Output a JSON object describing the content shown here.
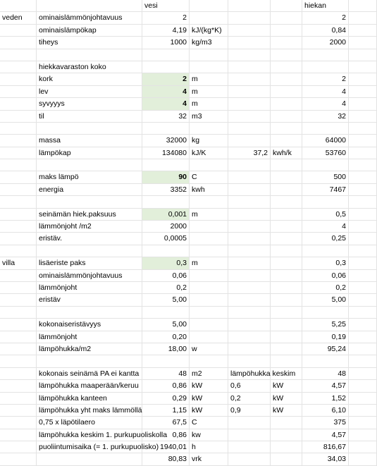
{
  "sheet": {
    "rows": [
      [
        "",
        "",
        "vesi",
        "",
        "",
        "",
        "hiekan",
        ""
      ],
      [
        "veden",
        "ominaislämmönjohtavuus",
        "2",
        "",
        "",
        "",
        "2",
        ""
      ],
      [
        "",
        "ominaislämpökap",
        "4,19",
        "kJ/(kg*K)",
        "",
        "",
        "0,84",
        ""
      ],
      [
        "",
        "tiheys",
        "1000",
        "kg/m3",
        "",
        "",
        "2000",
        ""
      ],
      [
        "",
        "",
        "",
        "",
        "",
        "",
        "",
        ""
      ],
      [
        "",
        "hiekkavaraston koko",
        "",
        "",
        "",
        "",
        "",
        ""
      ],
      [
        "",
        "kork",
        "2",
        "m",
        "",
        "",
        "2",
        ""
      ],
      [
        "",
        "lev",
        "4",
        "m",
        "",
        "",
        "4",
        ""
      ],
      [
        "",
        "syvyyys",
        "4",
        "m",
        "",
        "",
        "4",
        ""
      ],
      [
        "",
        "til",
        "32",
        "m3",
        "",
        "",
        "32",
        ""
      ],
      [
        "",
        "",
        "",
        "",
        "",
        "",
        "",
        ""
      ],
      [
        "",
        "massa",
        "32000",
        "kg",
        "",
        "",
        "64000",
        ""
      ],
      [
        "",
        "lämpökap",
        "134080",
        "kJ/K",
        "37,2",
        "kwh/k",
        "53760",
        ""
      ],
      [
        "",
        "",
        "",
        "",
        "",
        "",
        "",
        ""
      ],
      [
        "",
        "maks lämpö",
        "90",
        "C",
        "",
        "",
        "500",
        ""
      ],
      [
        "",
        "energia",
        "3352",
        "kwh",
        "",
        "",
        "7467",
        ""
      ],
      [
        "",
        "",
        "",
        "",
        "",
        "",
        "",
        ""
      ],
      [
        "",
        "seinämän hiek.paksuus",
        "0,001",
        "m",
        "",
        "",
        "0,5",
        ""
      ],
      [
        "",
        "lämmönjoht /m2",
        "2000",
        "",
        "",
        "",
        "4",
        ""
      ],
      [
        "",
        "eristäv.",
        "0,0005",
        "",
        "",
        "",
        "0,25",
        ""
      ],
      [
        "",
        "",
        "",
        "",
        "",
        "",
        "",
        ""
      ],
      [
        "villa",
        "lisäeriste paks",
        "0,3",
        "m",
        "",
        "",
        "0,3",
        ""
      ],
      [
        "",
        "ominaislämmönjohtavuus",
        "0,06",
        "",
        "",
        "",
        "0,06",
        ""
      ],
      [
        "",
        "lämmönjoht",
        "0,2",
        "",
        "",
        "",
        "0,2",
        ""
      ],
      [
        "",
        "eristäv",
        "5,00",
        "",
        "",
        "",
        "5,00",
        ""
      ],
      [
        "",
        "",
        "",
        "",
        "",
        "",
        "",
        ""
      ],
      [
        "",
        "kokonaiseristävyys",
        "5,00",
        "",
        "",
        "",
        "5,25",
        ""
      ],
      [
        "",
        "lämmönjoht",
        "0,20",
        "",
        "",
        "",
        "0,19",
        ""
      ],
      [
        "",
        "lämpöhukka/m2",
        "18,00",
        "w",
        "",
        "",
        "95,24",
        ""
      ],
      [
        "",
        "",
        "",
        "",
        "",
        "",
        "",
        ""
      ],
      [
        "",
        "kokonais seinämä PA ei kantta",
        "48",
        "m2",
        "lämpöhukka keskim",
        "",
        "48",
        ""
      ],
      [
        "",
        "lämpöhukka maaperään/keruu",
        "0,86",
        "kW",
        "0,6",
        "kW",
        "4,57",
        ""
      ],
      [
        "",
        "lämpöhukka kanteen",
        "0,29",
        "kW",
        "0,2",
        "kW",
        "1,52",
        ""
      ],
      [
        "",
        "lämpöhukka yht maks lämmöllä",
        "1,15",
        "kW",
        "0,9",
        "kW",
        "6,10",
        ""
      ],
      [
        "",
        "0,75 x läpötilaero",
        "67,5",
        "C",
        "",
        "",
        "375",
        ""
      ],
      [
        "",
        "lämpöhukka keskim 1. purkupuoliskolla",
        "0,86",
        "kw",
        "",
        "",
        "4,57",
        ""
      ],
      [
        "",
        "puoliintumisaika (= 1. purkupuolisko)",
        "1940,01",
        "h",
        "",
        "",
        "816,67",
        ""
      ],
      [
        "",
        "",
        "80,83",
        "vrk",
        "",
        "",
        "34,03",
        ""
      ]
    ],
    "highlighted_cells": [
      "6-2",
      "7-2",
      "8-2",
      "14-2",
      "17-2",
      "21-2"
    ],
    "bold_cells": [
      "6-2",
      "7-2",
      "8-2",
      "14-2"
    ],
    "right_aligned_columns": [
      2,
      6
    ],
    "right_aligned_cells": [
      "12-4"
    ],
    "highlight_color": "#e2efda"
  }
}
